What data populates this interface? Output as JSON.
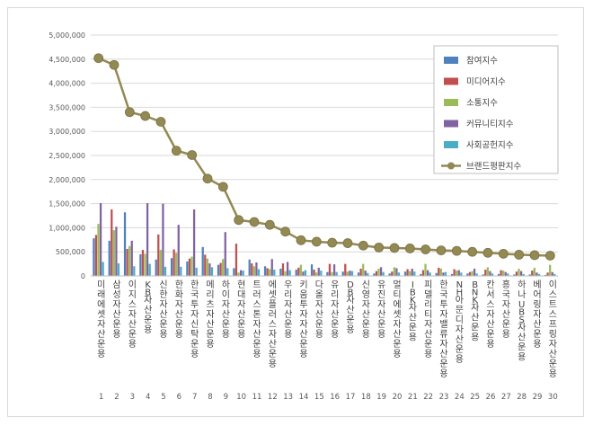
{
  "chart_data": {
    "type": "bar",
    "title": "",
    "xlabel": "",
    "ylabel": "",
    "ylim": [
      0,
      5000000
    ],
    "yticks": [
      "0",
      "500,000",
      "1,000,000",
      "1,500,000",
      "2,000,000",
      "2,500,000",
      "3,000,000",
      "3,500,000",
      "4,000,000",
      "4,500,000",
      "5,000,000"
    ],
    "grid": true,
    "legend_position": "top-right",
    "categories": [
      "미래에셋자산운용",
      "삼성자산운용",
      "이지스자산운용",
      "KB자산운용",
      "신한자산운용",
      "한화자산운용",
      "한국투자신탁운용",
      "메리츠자산운용",
      "하이자산운용",
      "현대자산운용",
      "트러스톤자산운용",
      "에셋플러스자산운용",
      "우리자산운용",
      "키움투자자산운용",
      "다올자산운용",
      "유리자산운용",
      "DB자산운용",
      "신영자산운용",
      "유진자산운용",
      "멀티에셋자산운용",
      "IBK자산운용",
      "피델리티자산운용",
      "한국투자밸류자산운용",
      "NH아문디자산운용",
      "BNK자산운용",
      "칸서스자산운용",
      "흥국자산운용",
      "하나UBS자산운용",
      "베어링자산운용",
      "이스트스프링자산운용"
    ],
    "rank_labels": [
      "1",
      "2",
      "3",
      "4",
      "5",
      "6",
      "7",
      "8",
      "9",
      "10",
      "11",
      "12",
      "13",
      "14",
      "15",
      "16",
      "17",
      "18",
      "19",
      "20",
      "21",
      "22",
      "23",
      "24",
      "25",
      "26",
      "27",
      "28",
      "29",
      "30"
    ],
    "series": [
      {
        "name": "참여지수",
        "kind": "bar",
        "color": "#4f81bd",
        "values": [
          780000,
          730000,
          1320000,
          450000,
          340000,
          370000,
          300000,
          600000,
          230000,
          160000,
          340000,
          200000,
          150000,
          130000,
          240000,
          80000,
          90000,
          70000,
          50000,
          50000,
          90000,
          40000,
          60000,
          40000,
          50000,
          30000,
          40000,
          30000,
          30000,
          20000
        ]
      },
      {
        "name": "미디어지수",
        "kind": "bar",
        "color": "#c0504d",
        "values": [
          850000,
          1380000,
          560000,
          540000,
          860000,
          550000,
          360000,
          440000,
          270000,
          670000,
          260000,
          160000,
          260000,
          170000,
          130000,
          250000,
          250000,
          150000,
          100000,
          90000,
          140000,
          120000,
          170000,
          140000,
          80000,
          130000,
          120000,
          90000,
          110000,
          70000
        ]
      },
      {
        "name": "소통지수",
        "kind": "bar",
        "color": "#9bbb59",
        "values": [
          1080000,
          950000,
          620000,
          460000,
          540000,
          480000,
          400000,
          360000,
          350000,
          70000,
          200000,
          140000,
          100000,
          230000,
          70000,
          80000,
          90000,
          250000,
          150000,
          180000,
          100000,
          250000,
          150000,
          110000,
          100000,
          180000,
          110000,
          150000,
          170000,
          230000
        ]
      },
      {
        "name": "커뮤니티지수",
        "kind": "bar",
        "color": "#8064a2",
        "values": [
          1510000,
          1020000,
          730000,
          1510000,
          1500000,
          1060000,
          1380000,
          260000,
          910000,
          120000,
          280000,
          350000,
          290000,
          90000,
          170000,
          240000,
          110000,
          110000,
          180000,
          160000,
          150000,
          120000,
          70000,
          120000,
          150000,
          100000,
          80000,
          100000,
          70000,
          80000
        ]
      },
      {
        "name": "사회공헌지수",
        "kind": "bar",
        "color": "#4bacc6",
        "values": [
          290000,
          260000,
          200000,
          250000,
          190000,
          190000,
          170000,
          180000,
          160000,
          110000,
          140000,
          130000,
          120000,
          120000,
          110000,
          80000,
          100000,
          60000,
          80000,
          70000,
          90000,
          70000,
          80000,
          70000,
          50000,
          50000,
          50000,
          40000,
          40000,
          40000
        ]
      },
      {
        "name": "브랜드평판지수",
        "kind": "line",
        "color": "#938953",
        "values": [
          4520000,
          4380000,
          3400000,
          3320000,
          3200000,
          2600000,
          2510000,
          2020000,
          1850000,
          1160000,
          1120000,
          1060000,
          920000,
          740000,
          710000,
          690000,
          680000,
          630000,
          590000,
          580000,
          570000,
          550000,
          530000,
          520000,
          500000,
          480000,
          460000,
          440000,
          430000,
          420000
        ]
      }
    ]
  }
}
